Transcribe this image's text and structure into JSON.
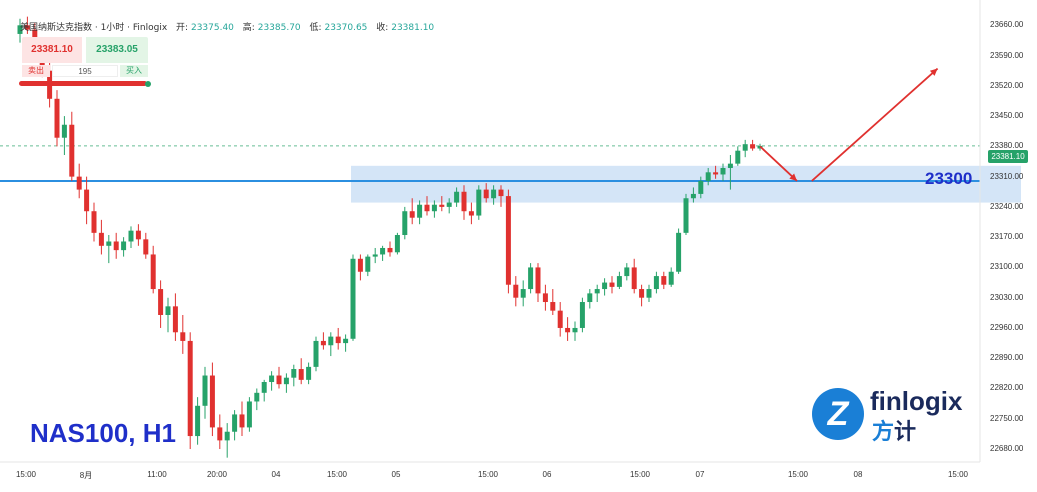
{
  "header": {
    "instrument": "美国纳斯达克指数 · 1小时 · Finlogix",
    "open_label": "开:",
    "open": "23375.40",
    "high_label": "高:",
    "high": "23385.70",
    "low_label": "低:",
    "low": "23370.65",
    "close_label": "收:",
    "close": "23381.10"
  },
  "trade_panel": {
    "sell_price": "23381.10",
    "buy_price": "23383.05",
    "sell_label": "卖出",
    "quantity": "195",
    "buy_label": "买入"
  },
  "overlay": {
    "symbol_text": "NAS100, H1",
    "level_text": "23300",
    "last_price_tag": "23381.10"
  },
  "logo": {
    "mark": "Z",
    "name": "finlogix",
    "cn_left": "方",
    "cn_right": "计"
  },
  "colors": {
    "bull": "#26a269",
    "bear": "#e0312f",
    "level_line": "#2b8fe0",
    "zone_fill": "#cfe2f6",
    "arrow": "#e0312f",
    "label_blue": "#1f2fc9"
  },
  "chart_data": {
    "type": "candlestick",
    "title": "美国纳斯达克指数 · 1小时 · Finlogix",
    "ylim": [
      22650,
      23700
    ],
    "y_ticks": [
      "23660.00",
      "23590.00",
      "23520.00",
      "23450.00",
      "23380.00",
      "23310.00",
      "23240.00",
      "23170.00",
      "23100.00",
      "23030.00",
      "22960.00",
      "22890.00",
      "22820.00",
      "22750.00",
      "22680.00"
    ],
    "x_ticks": [
      "15:00",
      "8月",
      "11:00",
      "20:00",
      "04",
      "15:00",
      "05",
      "15:00",
      "06",
      "15:00",
      "07",
      "15:00",
      "08",
      "15:00"
    ],
    "horizontal_level": 23300,
    "current_price_line": 23381.1,
    "candles": [
      {
        "o": 23640,
        "h": 23675,
        "l": 23620,
        "c": 23660
      },
      {
        "o": 23660,
        "h": 23680,
        "l": 23640,
        "c": 23650
      },
      {
        "o": 23650,
        "h": 23665,
        "l": 23580,
        "c": 23595
      },
      {
        "o": 23595,
        "h": 23610,
        "l": 23540,
        "c": 23555
      },
      {
        "o": 23555,
        "h": 23575,
        "l": 23470,
        "c": 23490
      },
      {
        "o": 23490,
        "h": 23510,
        "l": 23380,
        "c": 23400
      },
      {
        "o": 23400,
        "h": 23450,
        "l": 23360,
        "c": 23430
      },
      {
        "o": 23430,
        "h": 23460,
        "l": 23300,
        "c": 23310
      },
      {
        "o": 23310,
        "h": 23340,
        "l": 23260,
        "c": 23280
      },
      {
        "o": 23280,
        "h": 23310,
        "l": 23200,
        "c": 23230
      },
      {
        "o": 23230,
        "h": 23250,
        "l": 23160,
        "c": 23180
      },
      {
        "o": 23180,
        "h": 23210,
        "l": 23130,
        "c": 23150
      },
      {
        "o": 23150,
        "h": 23175,
        "l": 23110,
        "c": 23160
      },
      {
        "o": 23160,
        "h": 23180,
        "l": 23120,
        "c": 23140
      },
      {
        "o": 23140,
        "h": 23170,
        "l": 23125,
        "c": 23160
      },
      {
        "o": 23160,
        "h": 23195,
        "l": 23145,
        "c": 23185
      },
      {
        "o": 23185,
        "h": 23200,
        "l": 23150,
        "c": 23165
      },
      {
        "o": 23165,
        "h": 23180,
        "l": 23120,
        "c": 23130
      },
      {
        "o": 23130,
        "h": 23150,
        "l": 23040,
        "c": 23050
      },
      {
        "o": 23050,
        "h": 23070,
        "l": 22960,
        "c": 22990
      },
      {
        "o": 22990,
        "h": 23030,
        "l": 22950,
        "c": 23010
      },
      {
        "o": 23010,
        "h": 23040,
        "l": 22930,
        "c": 22950
      },
      {
        "o": 22950,
        "h": 22990,
        "l": 22900,
        "c": 22930
      },
      {
        "o": 22930,
        "h": 22950,
        "l": 22680,
        "c": 22710
      },
      {
        "o": 22710,
        "h": 22800,
        "l": 22690,
        "c": 22780
      },
      {
        "o": 22780,
        "h": 22870,
        "l": 22750,
        "c": 22850
      },
      {
        "o": 22850,
        "h": 22880,
        "l": 22710,
        "c": 22730
      },
      {
        "o": 22730,
        "h": 22760,
        "l": 22680,
        "c": 22700
      },
      {
        "o": 22700,
        "h": 22740,
        "l": 22660,
        "c": 22720
      },
      {
        "o": 22720,
        "h": 22770,
        "l": 22700,
        "c": 22760
      },
      {
        "o": 22760,
        "h": 22790,
        "l": 22710,
        "c": 22730
      },
      {
        "o": 22730,
        "h": 22800,
        "l": 22720,
        "c": 22790
      },
      {
        "o": 22790,
        "h": 22820,
        "l": 22770,
        "c": 22810
      },
      {
        "o": 22810,
        "h": 22840,
        "l": 22790,
        "c": 22835
      },
      {
        "o": 22835,
        "h": 22860,
        "l": 22815,
        "c": 22850
      },
      {
        "o": 22850,
        "h": 22870,
        "l": 22820,
        "c": 22830
      },
      {
        "o": 22830,
        "h": 22855,
        "l": 22810,
        "c": 22845
      },
      {
        "o": 22845,
        "h": 22875,
        "l": 22825,
        "c": 22865
      },
      {
        "o": 22865,
        "h": 22890,
        "l": 22830,
        "c": 22840
      },
      {
        "o": 22840,
        "h": 22880,
        "l": 22830,
        "c": 22870
      },
      {
        "o": 22870,
        "h": 22940,
        "l": 22860,
        "c": 22930
      },
      {
        "o": 22930,
        "h": 22950,
        "l": 22910,
        "c": 22920
      },
      {
        "o": 22920,
        "h": 22950,
        "l": 22895,
        "c": 22940
      },
      {
        "o": 22940,
        "h": 22960,
        "l": 22910,
        "c": 22925
      },
      {
        "o": 22925,
        "h": 22945,
        "l": 22905,
        "c": 22935
      },
      {
        "o": 22935,
        "h": 23130,
        "l": 22930,
        "c": 23120
      },
      {
        "o": 23120,
        "h": 23130,
        "l": 23070,
        "c": 23090
      },
      {
        "o": 23090,
        "h": 23130,
        "l": 23080,
        "c": 23125
      },
      {
        "o": 23125,
        "h": 23145,
        "l": 23110,
        "c": 23130
      },
      {
        "o": 23130,
        "h": 23150,
        "l": 23115,
        "c": 23145
      },
      {
        "o": 23145,
        "h": 23160,
        "l": 23125,
        "c": 23135
      },
      {
        "o": 23135,
        "h": 23180,
        "l": 23130,
        "c": 23175
      },
      {
        "o": 23175,
        "h": 23240,
        "l": 23165,
        "c": 23230
      },
      {
        "o": 23230,
        "h": 23260,
        "l": 23200,
        "c": 23215
      },
      {
        "o": 23215,
        "h": 23255,
        "l": 23200,
        "c": 23245
      },
      {
        "o": 23245,
        "h": 23265,
        "l": 23220,
        "c": 23230
      },
      {
        "o": 23230,
        "h": 23255,
        "l": 23215,
        "c": 23245
      },
      {
        "o": 23245,
        "h": 23265,
        "l": 23230,
        "c": 23240
      },
      {
        "o": 23240,
        "h": 23260,
        "l": 23225,
        "c": 23250
      },
      {
        "o": 23250,
        "h": 23285,
        "l": 23240,
        "c": 23275
      },
      {
        "o": 23275,
        "h": 23290,
        "l": 23210,
        "c": 23230
      },
      {
        "o": 23230,
        "h": 23250,
        "l": 23200,
        "c": 23220
      },
      {
        "o": 23220,
        "h": 23290,
        "l": 23210,
        "c": 23280
      },
      {
        "o": 23280,
        "h": 23295,
        "l": 23250,
        "c": 23260
      },
      {
        "o": 23260,
        "h": 23290,
        "l": 23245,
        "c": 23280
      },
      {
        "o": 23280,
        "h": 23290,
        "l": 23240,
        "c": 23265
      },
      {
        "o": 23265,
        "h": 23280,
        "l": 23040,
        "c": 23060
      },
      {
        "o": 23060,
        "h": 23080,
        "l": 23010,
        "c": 23030
      },
      {
        "o": 23030,
        "h": 23070,
        "l": 23010,
        "c": 23050
      },
      {
        "o": 23050,
        "h": 23110,
        "l": 23040,
        "c": 23100
      },
      {
        "o": 23100,
        "h": 23110,
        "l": 23020,
        "c": 23040
      },
      {
        "o": 23040,
        "h": 23060,
        "l": 23000,
        "c": 23020
      },
      {
        "o": 23020,
        "h": 23050,
        "l": 22990,
        "c": 23000
      },
      {
        "o": 23000,
        "h": 23020,
        "l": 22940,
        "c": 22960
      },
      {
        "o": 22960,
        "h": 22985,
        "l": 22930,
        "c": 22950
      },
      {
        "o": 22950,
        "h": 22975,
        "l": 22930,
        "c": 22960
      },
      {
        "o": 22960,
        "h": 23030,
        "l": 22950,
        "c": 23020
      },
      {
        "o": 23020,
        "h": 23050,
        "l": 23005,
        "c": 23040
      },
      {
        "o": 23040,
        "h": 23060,
        "l": 23020,
        "c": 23050
      },
      {
        "o": 23050,
        "h": 23075,
        "l": 23035,
        "c": 23065
      },
      {
        "o": 23065,
        "h": 23080,
        "l": 23040,
        "c": 23055
      },
      {
        "o": 23055,
        "h": 23090,
        "l": 23050,
        "c": 23080
      },
      {
        "o": 23080,
        "h": 23110,
        "l": 23070,
        "c": 23100
      },
      {
        "o": 23100,
        "h": 23120,
        "l": 23040,
        "c": 23050
      },
      {
        "o": 23050,
        "h": 23060,
        "l": 23010,
        "c": 23030
      },
      {
        "o": 23030,
        "h": 23060,
        "l": 23020,
        "c": 23050
      },
      {
        "o": 23050,
        "h": 23090,
        "l": 23040,
        "c": 23080
      },
      {
        "o": 23080,
        "h": 23090,
        "l": 23050,
        "c": 23060
      },
      {
        "o": 23060,
        "h": 23100,
        "l": 23055,
        "c": 23090
      },
      {
        "o": 23090,
        "h": 23190,
        "l": 23085,
        "c": 23180
      },
      {
        "o": 23180,
        "h": 23270,
        "l": 23175,
        "c": 23260
      },
      {
        "o": 23260,
        "h": 23285,
        "l": 23250,
        "c": 23270
      },
      {
        "o": 23270,
        "h": 23310,
        "l": 23260,
        "c": 23300
      },
      {
        "o": 23300,
        "h": 23330,
        "l": 23290,
        "c": 23320
      },
      {
        "o": 23320,
        "h": 23335,
        "l": 23305,
        "c": 23315
      },
      {
        "o": 23315,
        "h": 23340,
        "l": 23300,
        "c": 23330
      },
      {
        "o": 23330,
        "h": 23360,
        "l": 23280,
        "c": 23340
      },
      {
        "o": 23340,
        "h": 23380,
        "l": 23335,
        "c": 23370
      },
      {
        "o": 23370,
        "h": 23395,
        "l": 23355,
        "c": 23385
      },
      {
        "o": 23385,
        "h": 23395,
        "l": 23370,
        "c": 23375
      },
      {
        "o": 23375,
        "h": 23386,
        "l": 23370,
        "c": 23381
      }
    ],
    "zone": {
      "from": 23250,
      "to": 23335,
      "start_index": 45,
      "end_index": 135
    },
    "arrows": [
      {
        "from": [
          100,
          23380
        ],
        "to": [
          105,
          23300
        ]
      },
      {
        "from": [
          107,
          23300
        ],
        "to": [
          124,
          23560
        ]
      }
    ]
  }
}
